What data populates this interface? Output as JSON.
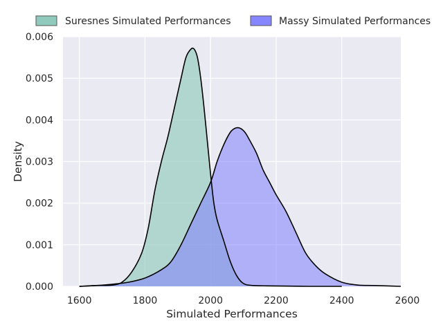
{
  "chart_data": {
    "type": "area",
    "plot_style": "density (KDE) curves, filled, dark grid background",
    "xlabel": "Simulated Performances",
    "ylabel": "Density",
    "xlim": [
      1550,
      2580
    ],
    "ylim": [
      0,
      0.006
    ],
    "x_ticks": [
      "1600",
      "1800",
      "2000",
      "2200",
      "2400",
      "2600"
    ],
    "y_ticks": [
      "0.000",
      "0.001",
      "0.002",
      "0.003",
      "0.004",
      "0.005",
      "0.006"
    ],
    "grid": true,
    "legend_position": "top, above plot",
    "background_color": "#eaeaf2",
    "series": [
      {
        "name": "Suresnes Simulated Performances",
        "color": "#8ac7b8",
        "x": [
          1600,
          1650,
          1700,
          1730,
          1760,
          1790,
          1810,
          1830,
          1850,
          1870,
          1890,
          1910,
          1925,
          1940,
          1950,
          1960,
          1970,
          1980,
          1990,
          2000,
          2010,
          2020,
          2040,
          2060,
          2080,
          2100,
          2130,
          2200,
          2300,
          2400
        ],
        "y": [
          0,
          2e-05,
          3e-05,
          0.0001,
          0.00035,
          0.0008,
          0.0014,
          0.0023,
          0.003,
          0.0036,
          0.0043,
          0.005,
          0.0055,
          0.0057,
          0.0057,
          0.0055,
          0.005,
          0.0043,
          0.0035,
          0.0027,
          0.002,
          0.0016,
          0.0011,
          0.0006,
          0.00025,
          7e-05,
          2e-05,
          1e-05,
          0,
          0
        ]
      },
      {
        "name": "Massy Simulated Performances",
        "color": "#8080ff",
        "x": [
          1600,
          1650,
          1700,
          1750,
          1800,
          1850,
          1880,
          1910,
          1940,
          1970,
          2000,
          2020,
          2040,
          2060,
          2075,
          2090,
          2105,
          2120,
          2140,
          2160,
          2180,
          2200,
          2230,
          2260,
          2290,
          2320,
          2350,
          2400,
          2450,
          2500,
          2580
        ],
        "y": [
          0,
          2e-05,
          5e-05,
          0.0001,
          0.0002,
          0.0004,
          0.0006,
          0.001,
          0.0015,
          0.002,
          0.0025,
          0.003,
          0.0034,
          0.0037,
          0.0038,
          0.0038,
          0.0037,
          0.0035,
          0.0032,
          0.0028,
          0.0025,
          0.0022,
          0.0018,
          0.0013,
          0.0008,
          0.0005,
          0.0003,
          0.0001,
          3e-05,
          2e-05,
          0
        ]
      }
    ]
  }
}
